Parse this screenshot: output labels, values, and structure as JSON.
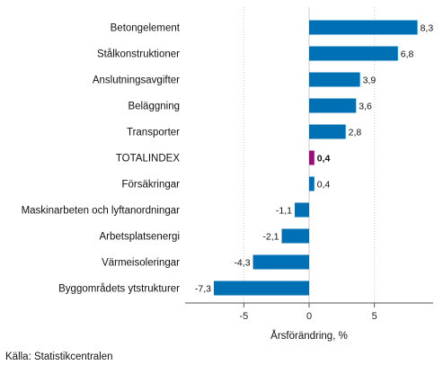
{
  "chart_data": {
    "type": "bar",
    "orientation": "horizontal",
    "categories": [
      "Betongelement",
      "Stålkonstruktioner",
      "Anslutningsavgifter",
      "Beläggning",
      "Transporter",
      "TOTALINDEX",
      "Försäkringar",
      "Maskinarbeten och lyftanordningar",
      "Arbetsplatsenergi",
      "Värmeisoleringar",
      "Byggområdets ytstrukturer"
    ],
    "values": [
      8.3,
      6.8,
      3.9,
      3.6,
      2.8,
      0.4,
      0.4,
      -1.1,
      -2.1,
      -4.3,
      -7.3
    ],
    "value_labels": [
      "8,3",
      "6,8",
      "3,9",
      "3,6",
      "2,8",
      "0,4",
      "0,4",
      "-1,1",
      "-2,1",
      "-4,3",
      "-7,3"
    ],
    "highlight_category": "TOTALINDEX",
    "xlabel": "Årsförändring, %",
    "xlim": [
      -9.5,
      9.5
    ],
    "xticks": [
      -5,
      0,
      5
    ],
    "xtick_labels": [
      "-5",
      "0",
      "5"
    ],
    "grid": "vertical",
    "colors": {
      "bar": "#0070b4",
      "highlight": "#9b0d78",
      "grid": "#cccccc",
      "axis": "#555555"
    }
  },
  "footer": {
    "source": "Källa: Statistikcentralen"
  }
}
